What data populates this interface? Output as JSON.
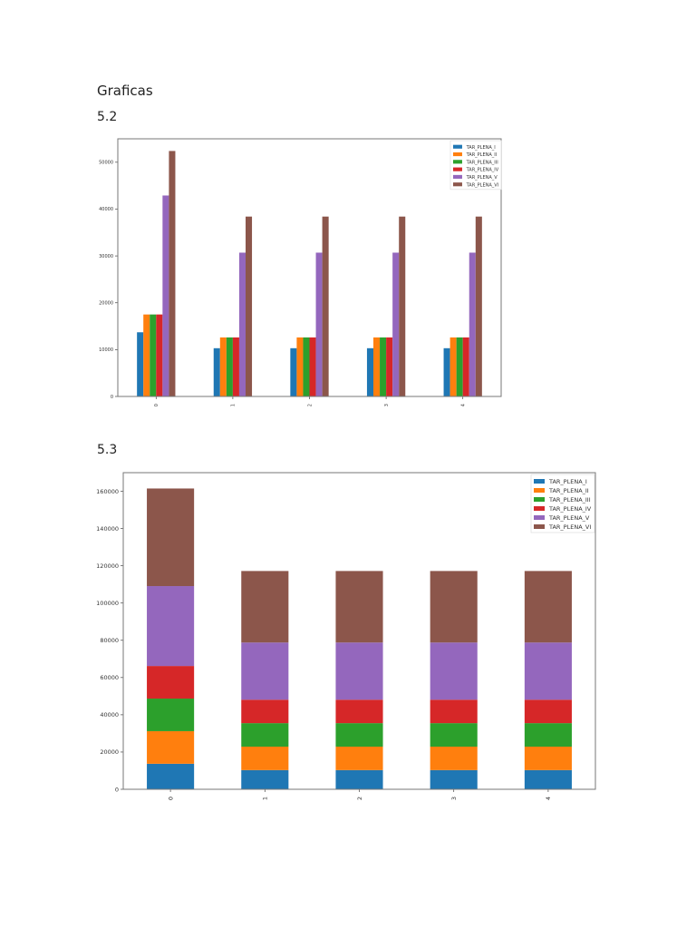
{
  "document": {
    "heading": "Graficas",
    "section_1": "5.2",
    "section_2": "5.3"
  },
  "chart_data": [
    {
      "type": "bar",
      "stacked": false,
      "categories": [
        "0",
        "1",
        "2",
        "3",
        "4"
      ],
      "ylim": [
        0,
        55000
      ],
      "yticks": [
        "0",
        "10000",
        "20000",
        "30000",
        "40000",
        "50000"
      ],
      "legend_position": "top-right",
      "grid": false,
      "series": [
        {
          "name": "TAR_PLENA_I",
          "color": "#1f77b4",
          "values": [
            13700,
            10300,
            10300,
            10300,
            10300
          ]
        },
        {
          "name": "TAR_PLENA_II",
          "color": "#ff7f0e",
          "values": [
            17500,
            12600,
            12600,
            12600,
            12600
          ]
        },
        {
          "name": "TAR_PLENA_III",
          "color": "#2ca02c",
          "values": [
            17500,
            12600,
            12600,
            12600,
            12600
          ]
        },
        {
          "name": "TAR_PLENA_IV",
          "color": "#d62728",
          "values": [
            17500,
            12600,
            12600,
            12600,
            12600
          ]
        },
        {
          "name": "TAR_PLENA_V",
          "color": "#9467bd",
          "values": [
            42900,
            30700,
            30700,
            30700,
            30700
          ]
        },
        {
          "name": "TAR_PLENA_VI",
          "color": "#8c564b",
          "values": [
            52400,
            38400,
            38400,
            38400,
            38400
          ]
        }
      ]
    },
    {
      "type": "bar",
      "stacked": true,
      "categories": [
        "0",
        "1",
        "2",
        "3",
        "4"
      ],
      "ylim": [
        0,
        170000
      ],
      "yticks": [
        "0",
        "20000",
        "40000",
        "60000",
        "80000",
        "100000",
        "120000",
        "140000",
        "160000"
      ],
      "legend_position": "top-right",
      "grid": false,
      "series": [
        {
          "name": "TAR_PLENA_I",
          "color": "#1f77b4",
          "values": [
            13700,
            10300,
            10300,
            10300,
            10300
          ]
        },
        {
          "name": "TAR_PLENA_II",
          "color": "#ff7f0e",
          "values": [
            17500,
            12600,
            12600,
            12600,
            12600
          ]
        },
        {
          "name": "TAR_PLENA_III",
          "color": "#2ca02c",
          "values": [
            17500,
            12600,
            12600,
            12600,
            12600
          ]
        },
        {
          "name": "TAR_PLENA_IV",
          "color": "#d62728",
          "values": [
            17500,
            12600,
            12600,
            12600,
            12600
          ]
        },
        {
          "name": "TAR_PLENA_V",
          "color": "#9467bd",
          "values": [
            42900,
            30700,
            30700,
            30700,
            30700
          ]
        },
        {
          "name": "TAR_PLENA_VI",
          "color": "#8c564b",
          "values": [
            52400,
            38400,
            38400,
            38400,
            38400
          ]
        }
      ]
    }
  ]
}
